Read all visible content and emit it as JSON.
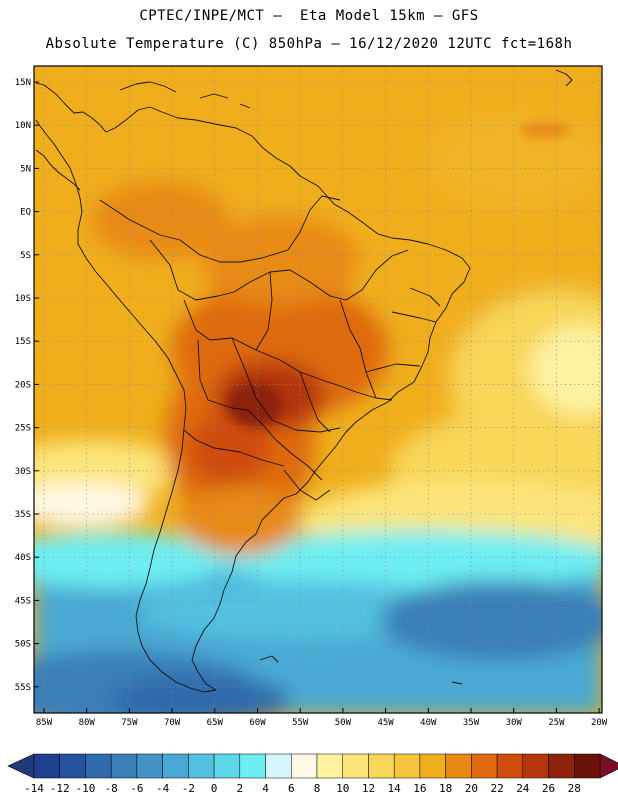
{
  "header": {
    "title_line1": "CPTEC/INPE/MCT –  Eta Model 15km – GFS",
    "title_line2": "Absolute Temperature (C) 850hPa – 16/12/2020 12UTC fct=168h"
  },
  "axes": {
    "lat_labels": [
      "15N",
      "10N",
      "5N",
      "EQ",
      "5S",
      "10S",
      "15S",
      "20S",
      "25S",
      "30S",
      "35S",
      "40S",
      "45S",
      "50S",
      "55S"
    ],
    "lon_labels": [
      "85W",
      "80W",
      "75W",
      "70W",
      "65W",
      "60W",
      "55W",
      "50W",
      "45W",
      "40W",
      "35W",
      "30W",
      "25W",
      "20W"
    ]
  },
  "colorbar": {
    "labels": [
      "-14",
      "-12",
      "-10",
      "-8",
      "-6",
      "-4",
      "-2",
      "0",
      "2",
      "4",
      "6",
      "8",
      "10",
      "12",
      "14",
      "16",
      "18",
      "20",
      "22",
      "24",
      "26",
      "28"
    ],
    "colors": [
      "#1f3f8f",
      "#25539f",
      "#2f6aac",
      "#3a7fb8",
      "#4593c6",
      "#4aa9d4",
      "#53c1e1",
      "#5dd8ea",
      "#6deef2",
      "#d4f6fb",
      "#fff8e6",
      "#fdf2a0",
      "#fbe57a",
      "#f8d659",
      "#f4c53c",
      "#f0ae1c",
      "#e88a12",
      "#df6a10",
      "#cf4c0e",
      "#b3360c",
      "#8e220a",
      "#6a1108"
    ],
    "underflow_color": "#203a7c",
    "overflow_color": "#7a0f2c"
  }
}
